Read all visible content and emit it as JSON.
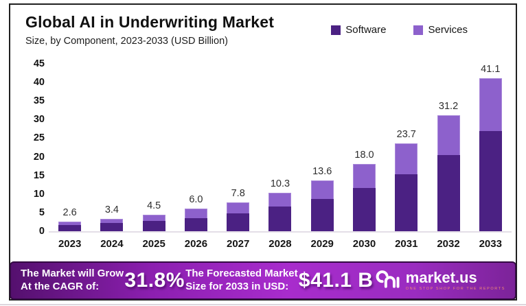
{
  "header": {
    "title": "Global AI in Underwriting Market",
    "subtitle": "Size, by Component, 2023-2033 (USD Billion)"
  },
  "chart_data": {
    "type": "bar",
    "stacked": true,
    "title": "Global AI in Underwriting Market Size, by Component, 2023-2033 (USD Billion)",
    "categories": [
      "2023",
      "2024",
      "2025",
      "2026",
      "2027",
      "2028",
      "2029",
      "2030",
      "2031",
      "2032",
      "2033"
    ],
    "totals": [
      2.6,
      3.4,
      4.5,
      6.0,
      7.8,
      10.3,
      13.6,
      18.0,
      23.7,
      31.2,
      41.1
    ],
    "total_labels": [
      "2.6",
      "3.4",
      "4.5",
      "6.0",
      "7.8",
      "10.3",
      "13.6",
      "18.0",
      "23.7",
      "31.2",
      "41.1"
    ],
    "series": [
      {
        "name": "Software",
        "color": "#4b2183",
        "values": [
          1.7,
          2.2,
          2.7,
          3.5,
          4.8,
          6.6,
          8.7,
          11.6,
          15.4,
          20.4,
          26.9
        ]
      },
      {
        "name": "Services",
        "color": "#8d61cc",
        "values": [
          0.9,
          1.2,
          1.8,
          2.5,
          3.0,
          3.7,
          4.9,
          6.4,
          8.3,
          10.8,
          14.2
        ]
      }
    ],
    "xlabel": "",
    "ylabel": "",
    "y_ticks": [
      0,
      5,
      10,
      15,
      20,
      25,
      30,
      35,
      40,
      45
    ],
    "ylim": [
      0,
      45
    ],
    "grid": false,
    "legend_position": "top-right"
  },
  "banner": {
    "cagr_label_line1": "The Market will Grow",
    "cagr_label_line2": "At the CAGR of:",
    "cagr_value": "31.8%",
    "forecast_label_line1": "The Forecasted Market",
    "forecast_label_line2": "Size for 2033 in USD:",
    "forecast_value": "$41.1 B"
  },
  "logo": {
    "name": "market.us",
    "tagline": "ONE STOP SHOP FOR THE REPORTS"
  }
}
